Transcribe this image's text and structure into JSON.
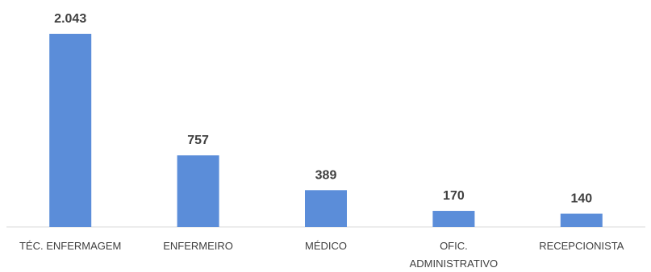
{
  "chart_data": {
    "type": "bar",
    "categories": [
      "TÉC. ENFERMAGEM",
      "ENFERMEIRO",
      "MÉDICO",
      "OFIC. ADMINISTRATIVO",
      "RECEPCIONISTA"
    ],
    "category_lines": [
      [
        "TÉC. ENFERMAGEM"
      ],
      [
        "ENFERMEIRO"
      ],
      [
        "MÉDICO"
      ],
      [
        "OFIC.",
        "ADMINISTRATIVO"
      ],
      [
        "RECEPCIONISTA"
      ]
    ],
    "values": [
      2043,
      757,
      389,
      170,
      140
    ],
    "value_labels": [
      "2.043",
      "757",
      "389",
      "170",
      "140"
    ],
    "bar_color": "#5B8DD9",
    "text_color": "#404040",
    "axis_color": "#D9D9D9",
    "ylim": [
      0,
      2043
    ],
    "grid": false,
    "legend": "none"
  }
}
